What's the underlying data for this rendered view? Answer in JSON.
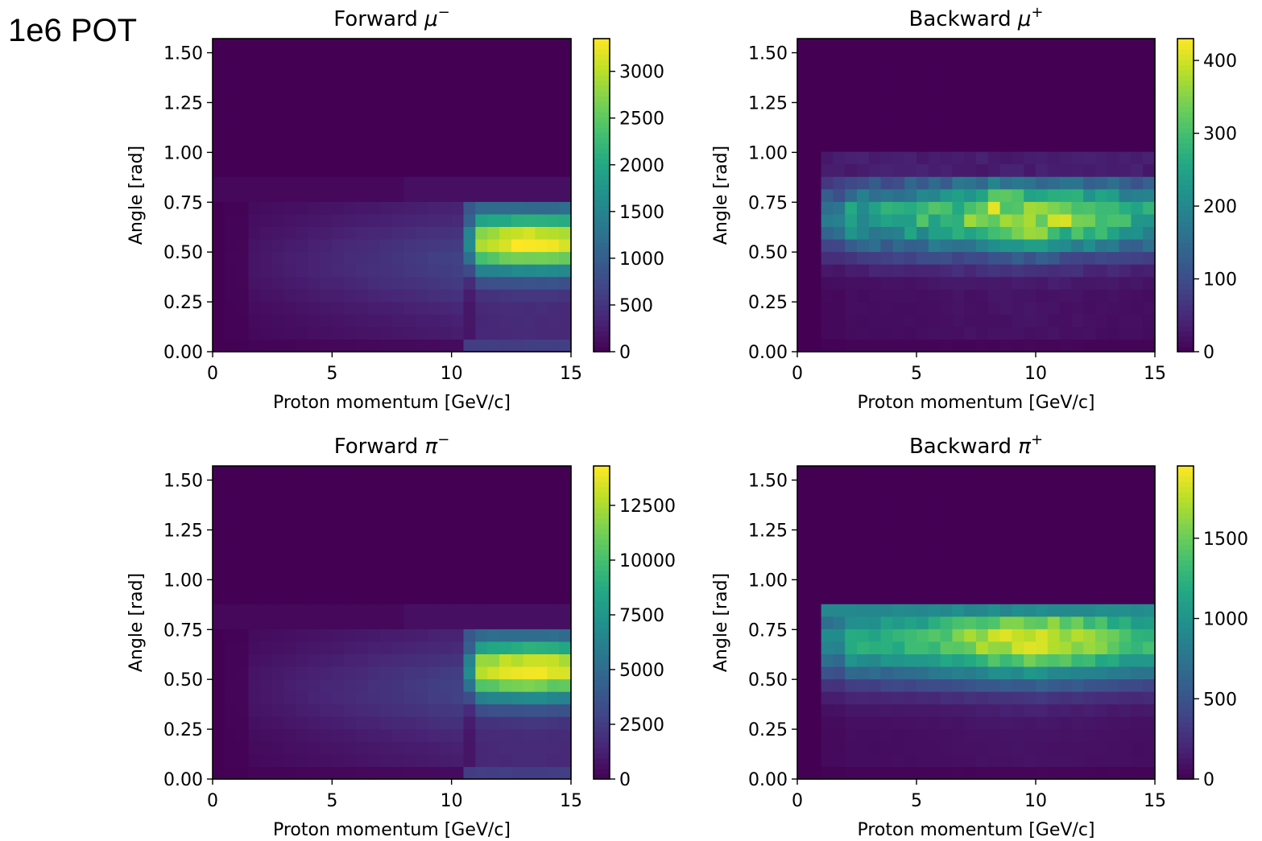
{
  "figure": {
    "overlay_label": "1e6 POT"
  },
  "panels": [
    {
      "title_base": "Forward",
      "title_particle": "μ",
      "title_charge": "−",
      "xlabel": "Proton momentum [GeV/c]",
      "ylabel": "Angle [rad]",
      "xticks": [
        "0",
        "5",
        "10",
        "15"
      ],
      "yticks": [
        "0.00",
        "0.25",
        "0.50",
        "0.75",
        "1.00",
        "1.25",
        "1.50"
      ],
      "cbar_ticks": [
        "0",
        "500",
        "1000",
        "1500",
        "2000",
        "2500",
        "3000"
      ]
    },
    {
      "title_base": "Backward",
      "title_particle": "μ",
      "title_charge": "+",
      "xlabel": "Proton momentum [GeV/c]",
      "ylabel": "Angle [rad]",
      "xticks": [
        "0",
        "5",
        "10",
        "15"
      ],
      "yticks": [
        "0.00",
        "0.25",
        "0.50",
        "0.75",
        "1.00",
        "1.25",
        "1.50"
      ],
      "cbar_ticks": [
        "0",
        "100",
        "200",
        "300",
        "400"
      ]
    },
    {
      "title_base": "Forward",
      "title_particle": "π",
      "title_charge": "−",
      "xlabel": "Proton momentum [GeV/c]",
      "ylabel": "Angle [rad]",
      "xticks": [
        "0",
        "5",
        "10",
        "15"
      ],
      "yticks": [
        "0.00",
        "0.25",
        "0.50",
        "0.75",
        "1.00",
        "1.25",
        "1.50"
      ],
      "cbar_ticks": [
        "0",
        "2500",
        "5000",
        "7500",
        "10000",
        "12500"
      ]
    },
    {
      "title_base": "Backward",
      "title_particle": "π",
      "title_charge": "+",
      "xlabel": "Proton momentum [GeV/c]",
      "ylabel": "Angle [rad]",
      "xticks": [
        "0",
        "5",
        "10",
        "15"
      ],
      "yticks": [
        "0.00",
        "0.25",
        "0.50",
        "0.75",
        "1.00",
        "1.25",
        "1.50"
      ],
      "cbar_ticks": [
        "0",
        "500",
        "1000",
        "1500"
      ]
    }
  ],
  "chart_data": [
    {
      "type": "heatmap",
      "colormap": "viridis",
      "title": "Forward μ−",
      "xlabel": "Proton momentum [GeV/c]",
      "ylabel": "Angle [rad]",
      "xlim": [
        0,
        15
      ],
      "ylim": [
        0,
        1.5708
      ],
      "x_bins": 30,
      "y_bins": 25,
      "xticks": [
        0,
        5,
        10,
        15
      ],
      "yticks": [
        0,
        0.25,
        0.5,
        0.75,
        1.0,
        1.25,
        1.5
      ],
      "colorbar_range": [
        0,
        3350
      ],
      "colorbar_ticks": [
        0,
        500,
        1000,
        1500,
        2000,
        2500,
        3000
      ],
      "grid": false
    },
    {
      "type": "heatmap",
      "colormap": "viridis",
      "title": "Backward μ+",
      "xlabel": "Proton momentum [GeV/c]",
      "ylabel": "Angle [rad]",
      "xlim": [
        0,
        15
      ],
      "ylim": [
        0,
        1.5708
      ],
      "x_bins": 30,
      "y_bins": 25,
      "xticks": [
        0,
        5,
        10,
        15
      ],
      "yticks": [
        0,
        0.25,
        0.5,
        0.75,
        1.0,
        1.25,
        1.5
      ],
      "colorbar_range": [
        0,
        430
      ],
      "colorbar_ticks": [
        0,
        100,
        200,
        300,
        400
      ],
      "grid": false
    },
    {
      "type": "heatmap",
      "colormap": "viridis",
      "title": "Forward π−",
      "xlabel": "Proton momentum [GeV/c]",
      "ylabel": "Angle [rad]",
      "xlim": [
        0,
        15
      ],
      "ylim": [
        0,
        1.5708
      ],
      "x_bins": 30,
      "y_bins": 25,
      "xticks": [
        0,
        5,
        10,
        15
      ],
      "yticks": [
        0,
        0.25,
        0.5,
        0.75,
        1.0,
        1.25,
        1.5
      ],
      "colorbar_range": [
        0,
        14300
      ],
      "colorbar_ticks": [
        0,
        2500,
        5000,
        7500,
        10000,
        12500
      ],
      "grid": false
    },
    {
      "type": "heatmap",
      "colormap": "viridis",
      "title": "Backward π+",
      "xlabel": "Proton momentum [GeV/c]",
      "ylabel": "Angle [rad]",
      "xlim": [
        0,
        15
      ],
      "ylim": [
        0,
        1.5708
      ],
      "x_bins": 30,
      "y_bins": 25,
      "xticks": [
        0,
        5,
        10,
        15
      ],
      "yticks": [
        0,
        0.25,
        0.5,
        0.75,
        1.0,
        1.25,
        1.5
      ],
      "colorbar_range": [
        0,
        1950
      ],
      "colorbar_ticks": [
        0,
        500,
        1000,
        1500
      ],
      "grid": false
    }
  ]
}
